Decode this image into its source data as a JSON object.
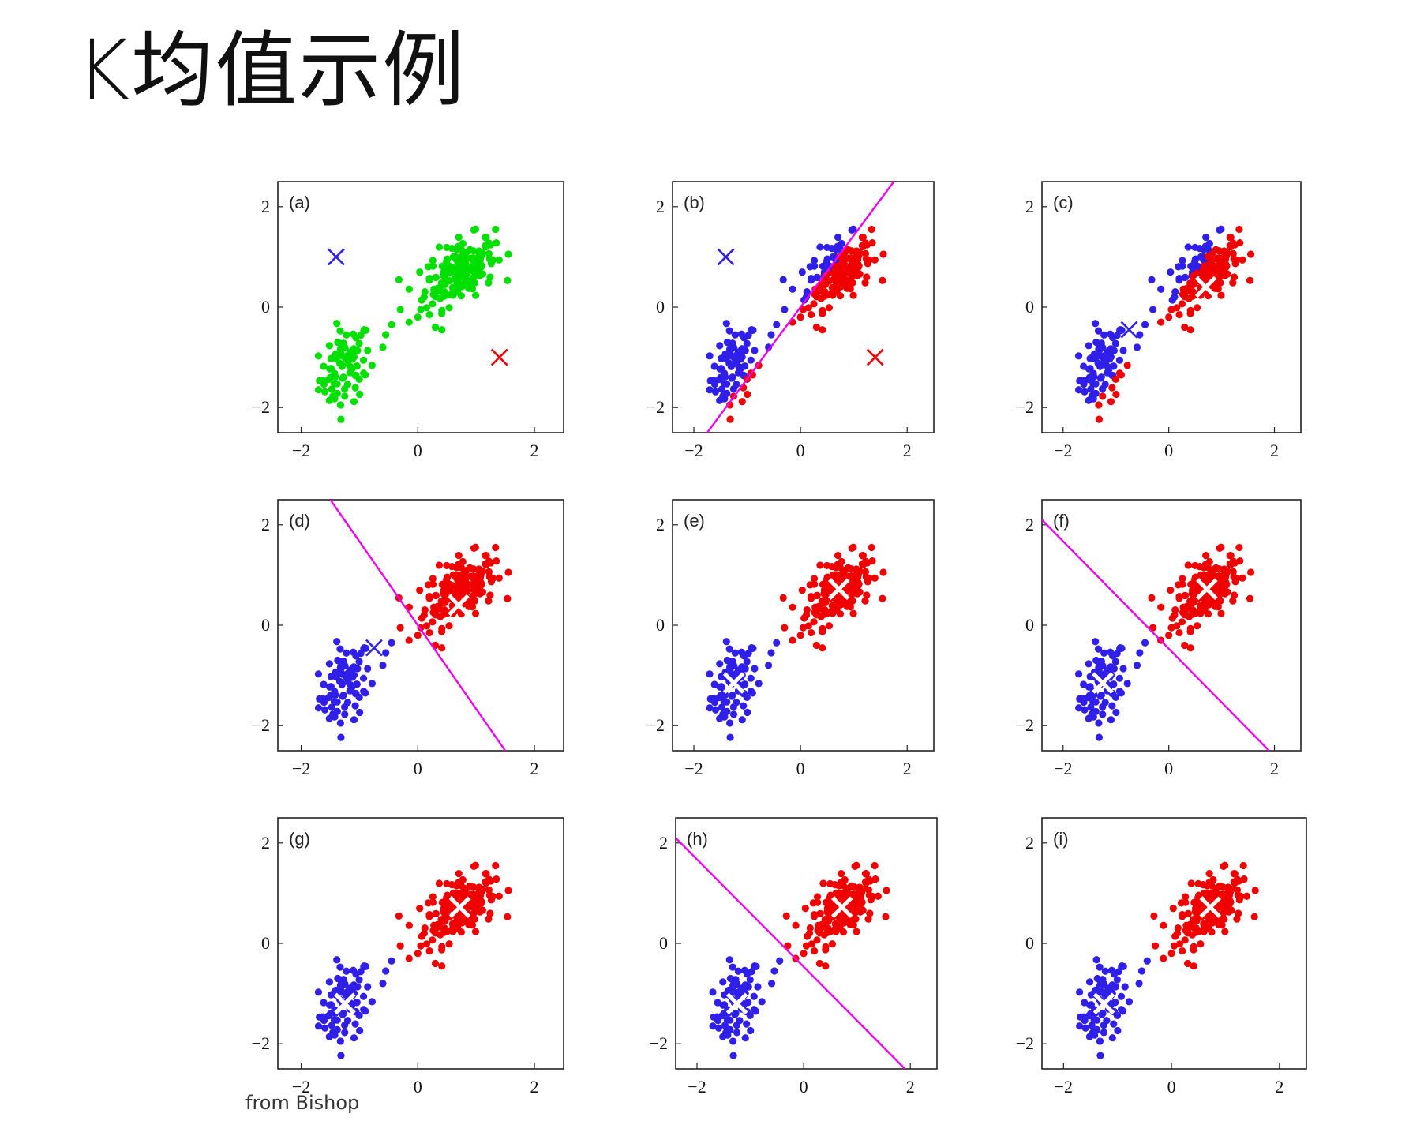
{
  "title": "K均值示例",
  "source_note": "from Bishop",
  "colors": {
    "unassigned": "#00e000",
    "cluster_blue": "#2f1fe8",
    "cluster_red": "#f00000",
    "boundary": "#ee00ee",
    "centroid_converged": "#ffffff"
  },
  "chart_data": [
    {
      "type": "scatter",
      "panel": "(a)",
      "xlim": [
        -2.4,
        2.5
      ],
      "ylim": [
        -2.5,
        2.5
      ],
      "xticks": [
        "−2",
        "0",
        "2"
      ],
      "xtick_values": [
        -2,
        0,
        2
      ],
      "yticks": [
        "2",
        "0",
        "−2"
      ],
      "ytick_values": [
        2,
        0,
        -2
      ],
      "assignment": "none",
      "boundary": null,
      "centroids": [
        {
          "x": -1.4,
          "y": 1.0,
          "color": "blue"
        },
        {
          "x": 1.4,
          "y": -1.0,
          "color": "red"
        }
      ]
    },
    {
      "type": "scatter",
      "panel": "(b)",
      "xlim": [
        -2.4,
        2.5
      ],
      "ylim": [
        -2.5,
        2.5
      ],
      "xticks": [
        "−2",
        "0",
        "2"
      ],
      "xtick_values": [
        -2,
        0,
        2
      ],
      "yticks": [
        "2",
        "0",
        "−2"
      ],
      "ytick_values": [
        2,
        0,
        -2
      ],
      "assignment": "split",
      "boundary": {
        "p1": [
          -1.75,
          -2.5
        ],
        "p2": [
          1.75,
          2.5
        ]
      },
      "centroids": [
        {
          "x": -1.4,
          "y": 1.0,
          "color": "blue"
        },
        {
          "x": 1.4,
          "y": -1.0,
          "color": "red"
        }
      ]
    },
    {
      "type": "scatter",
      "panel": "(c)",
      "xlim": [
        -2.4,
        2.5
      ],
      "ylim": [
        -2.5,
        2.5
      ],
      "xticks": [
        "−2",
        "0",
        "2"
      ],
      "xtick_values": [
        -2,
        0,
        2
      ],
      "yticks": [
        "2",
        "0",
        "−2"
      ],
      "ytick_values": [
        2,
        0,
        -2
      ],
      "assignment": "split",
      "boundary": null,
      "centroids": [
        {
          "x": -0.75,
          "y": -0.45,
          "color": "blue"
        },
        {
          "x": 0.7,
          "y": 0.4,
          "color": "red-white"
        }
      ]
    },
    {
      "type": "scatter",
      "panel": "(d)",
      "xlim": [
        -2.4,
        2.5
      ],
      "ylim": [
        -2.5,
        2.5
      ],
      "xticks": [
        "−2",
        "0",
        "2"
      ],
      "xtick_values": [
        -2,
        0,
        2
      ],
      "yticks": [
        "2",
        "0",
        "−2"
      ],
      "ytick_values": [
        2,
        0,
        -2
      ],
      "assignment": "kmeans",
      "boundary": {
        "p1": [
          -1.5,
          2.5
        ],
        "p2": [
          1.5,
          -2.5
        ]
      },
      "centroids": [
        {
          "x": -0.75,
          "y": -0.45,
          "color": "blue"
        },
        {
          "x": 0.7,
          "y": 0.4,
          "color": "red-white"
        }
      ]
    },
    {
      "type": "scatter",
      "panel": "(e)",
      "xlim": [
        -2.4,
        2.5
      ],
      "ylim": [
        -2.5,
        2.5
      ],
      "xticks": [
        "−2",
        "0",
        "2"
      ],
      "xtick_values": [
        -2,
        0,
        2
      ],
      "yticks": [
        "2",
        "0",
        "−2"
      ],
      "ytick_values": [
        2,
        0,
        -2
      ],
      "assignment": "kmeans",
      "boundary": null,
      "centroids": [
        {
          "x": -1.25,
          "y": -1.15,
          "color": "blue-white"
        },
        {
          "x": 0.72,
          "y": 0.72,
          "color": "red-white"
        }
      ]
    },
    {
      "type": "scatter",
      "panel": "(f)",
      "xlim": [
        -2.4,
        2.5
      ],
      "ylim": [
        -2.5,
        2.5
      ],
      "xticks": [
        "−2",
        "0",
        "2"
      ],
      "xtick_values": [
        -2,
        0,
        2
      ],
      "yticks": [
        "2",
        "0",
        "−2"
      ],
      "ytick_values": [
        2,
        0,
        -2
      ],
      "assignment": "kmeans",
      "boundary": {
        "p1": [
          -2.4,
          2.1
        ],
        "p2": [
          1.9,
          -2.5
        ]
      },
      "centroids": [
        {
          "x": -1.25,
          "y": -1.15,
          "color": "blue-white"
        },
        {
          "x": 0.72,
          "y": 0.72,
          "color": "red-white"
        }
      ]
    },
    {
      "type": "scatter",
      "panel": "(g)",
      "xlim": [
        -2.4,
        2.5
      ],
      "ylim": [
        -2.5,
        2.5
      ],
      "xticks": [
        "−2",
        "0",
        "2"
      ],
      "xtick_values": [
        -2,
        0,
        2
      ],
      "yticks": [
        "2",
        "0",
        "−2"
      ],
      "ytick_values": [
        2,
        0,
        -2
      ],
      "assignment": "kmeans",
      "boundary": null,
      "centroids": [
        {
          "x": -1.25,
          "y": -1.2,
          "color": "blue-white"
        },
        {
          "x": 0.72,
          "y": 0.72,
          "color": "red-white"
        }
      ]
    },
    {
      "type": "scatter",
      "panel": "(h)",
      "xlim": [
        -2.4,
        2.5
      ],
      "ylim": [
        -2.5,
        2.5
      ],
      "xticks": [
        "−2",
        "0",
        "2"
      ],
      "xtick_values": [
        -2,
        0,
        2
      ],
      "yticks": [
        "2",
        "0",
        "−2"
      ],
      "ytick_values": [
        2,
        0,
        -2
      ],
      "assignment": "kmeans",
      "boundary": {
        "p1": [
          -2.4,
          2.1
        ],
        "p2": [
          1.9,
          -2.5
        ]
      },
      "centroids": [
        {
          "x": -1.25,
          "y": -1.2,
          "color": "blue-white"
        },
        {
          "x": 0.72,
          "y": 0.72,
          "color": "red-white"
        }
      ]
    },
    {
      "type": "scatter",
      "panel": "(i)",
      "xlim": [
        -2.4,
        2.5
      ],
      "ylim": [
        -2.5,
        2.5
      ],
      "xticks": [
        "−2",
        "0",
        "2"
      ],
      "xtick_values": [
        -2,
        0,
        2
      ],
      "yticks": [
        "2",
        "0",
        "−2"
      ],
      "ytick_values": [
        2,
        0,
        -2
      ],
      "assignment": "kmeans",
      "boundary": null,
      "centroids": [
        {
          "x": -1.25,
          "y": -1.2,
          "color": "blue-white"
        },
        {
          "x": 0.72,
          "y": 0.72,
          "color": "red-white"
        }
      ]
    }
  ]
}
